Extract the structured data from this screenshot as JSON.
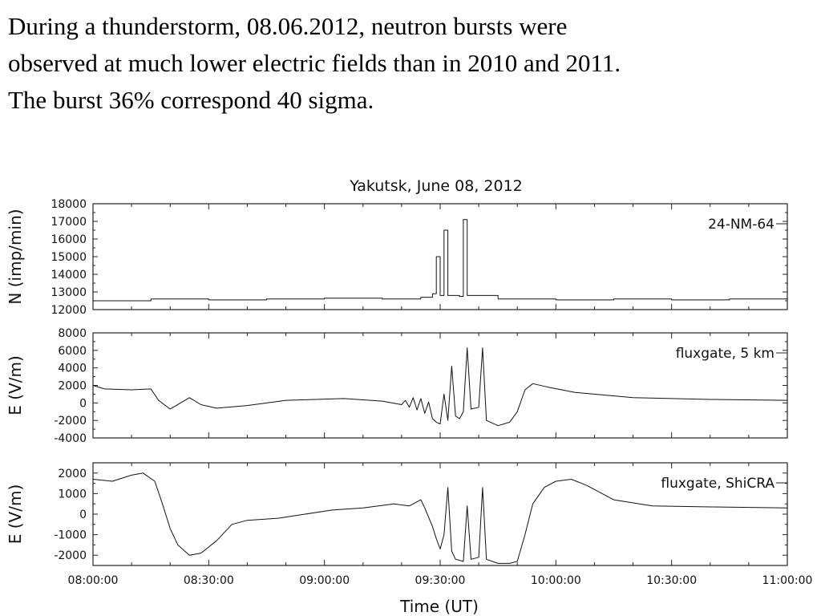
{
  "slide": {
    "lines": [
      "During a thunderstorm, 08.06.2012, neutron bursts were",
      "observed at much lower electric fields than in 2010 and 2011.",
      "The burst 36% correspond 40 sigma."
    ]
  },
  "chart_data": {
    "type": "line",
    "title": "Yakutsk, June 08, 2012",
    "xlabel": "Time (UT)",
    "x_ticks": [
      "08:00:00",
      "08:30:00",
      "09:00:00",
      "09:30:00",
      "10:00:00",
      "10:30:00",
      "11:00:00"
    ],
    "xlim_minutes": [
      0,
      180
    ],
    "grid": false,
    "panels": [
      {
        "id": "neutron",
        "ylabel": "N (imp/min)",
        "legend": "24-NM-64",
        "legend_position": "top-right",
        "ylim": [
          12000,
          18000
        ],
        "y_ticks": [
          12000,
          13000,
          14000,
          15000,
          16000,
          17000,
          18000
        ],
        "step": true,
        "points": [
          [
            0,
            12500
          ],
          [
            15,
            12600
          ],
          [
            30,
            12550
          ],
          [
            45,
            12600
          ],
          [
            60,
            12650
          ],
          [
            75,
            12600
          ],
          [
            85,
            12700
          ],
          [
            88,
            12900
          ],
          [
            89,
            15000
          ],
          [
            90,
            12800
          ],
          [
            91,
            16500
          ],
          [
            92,
            12800
          ],
          [
            95,
            12750
          ],
          [
            96,
            17100
          ],
          [
            97,
            12800
          ],
          [
            105,
            12600
          ],
          [
            120,
            12550
          ],
          [
            135,
            12600
          ],
          [
            150,
            12550
          ],
          [
            165,
            12600
          ],
          [
            180,
            12700
          ]
        ]
      },
      {
        "id": "field_5km",
        "ylabel": "E (V/m)",
        "legend": "fluxgate, 5 km",
        "legend_position": "top-right",
        "ylim": [
          -4000,
          8000
        ],
        "y_ticks": [
          -4000,
          -2000,
          0,
          2000,
          4000,
          6000,
          8000
        ],
        "points": [
          [
            0,
            2000
          ],
          [
            3,
            1600
          ],
          [
            10,
            1500
          ],
          [
            15,
            1600
          ],
          [
            17,
            300
          ],
          [
            20,
            -700
          ],
          [
            25,
            600
          ],
          [
            28,
            -200
          ],
          [
            32,
            -600
          ],
          [
            40,
            -300
          ],
          [
            50,
            300
          ],
          [
            65,
            500
          ],
          [
            75,
            200
          ],
          [
            80,
            -200
          ],
          [
            81,
            300
          ],
          [
            82,
            -500
          ],
          [
            83,
            600
          ],
          [
            84,
            -800
          ],
          [
            85,
            500
          ],
          [
            86,
            -1200
          ],
          [
            87,
            100
          ],
          [
            88,
            -1800
          ],
          [
            89,
            -2200
          ],
          [
            90,
            -2400
          ],
          [
            91,
            1000
          ],
          [
            92,
            -2000
          ],
          [
            93,
            4200
          ],
          [
            94,
            -1500
          ],
          [
            95,
            -1800
          ],
          [
            96,
            -1000
          ],
          [
            97,
            6300
          ],
          [
            98,
            -700
          ],
          [
            100,
            -500
          ],
          [
            101,
            6300
          ],
          [
            102,
            -2000
          ],
          [
            105,
            -2600
          ],
          [
            108,
            -2200
          ],
          [
            110,
            -1000
          ],
          [
            112,
            1500
          ],
          [
            114,
            2200
          ],
          [
            118,
            1800
          ],
          [
            125,
            1200
          ],
          [
            140,
            600
          ],
          [
            160,
            400
          ],
          [
            180,
            300
          ]
        ]
      },
      {
        "id": "field_shicra",
        "ylabel": "E (V/m)",
        "legend": "fluxgate, ShiCRA",
        "legend_position": "top-right",
        "ylim": [
          -2500,
          2500
        ],
        "y_ticks": [
          -2000,
          -1000,
          0,
          1000,
          2000
        ],
        "points": [
          [
            0,
            1700
          ],
          [
            5,
            1600
          ],
          [
            10,
            1900
          ],
          [
            13,
            2000
          ],
          [
            16,
            1600
          ],
          [
            18,
            500
          ],
          [
            20,
            -700
          ],
          [
            22,
            -1500
          ],
          [
            25,
            -2000
          ],
          [
            28,
            -1900
          ],
          [
            32,
            -1300
          ],
          [
            36,
            -500
          ],
          [
            40,
            -300
          ],
          [
            48,
            -200
          ],
          [
            55,
            0
          ],
          [
            62,
            200
          ],
          [
            70,
            300
          ],
          [
            78,
            500
          ],
          [
            82,
            400
          ],
          [
            85,
            700
          ],
          [
            86,
            300
          ],
          [
            88,
            -600
          ],
          [
            89,
            -1200
          ],
          [
            90,
            -1700
          ],
          [
            91,
            -1000
          ],
          [
            92,
            1300
          ],
          [
            93,
            -1800
          ],
          [
            94,
            -2200
          ],
          [
            96,
            -2300
          ],
          [
            97,
            400
          ],
          [
            98,
            -2200
          ],
          [
            100,
            -2100
          ],
          [
            101,
            1300
          ],
          [
            102,
            -2200
          ],
          [
            105,
            -2400
          ],
          [
            108,
            -2400
          ],
          [
            110,
            -2300
          ],
          [
            112,
            -1000
          ],
          [
            114,
            500
          ],
          [
            117,
            1300
          ],
          [
            120,
            1600
          ],
          [
            124,
            1700
          ],
          [
            128,
            1400
          ],
          [
            135,
            700
          ],
          [
            145,
            400
          ],
          [
            160,
            350
          ],
          [
            180,
            300
          ]
        ]
      }
    ]
  }
}
